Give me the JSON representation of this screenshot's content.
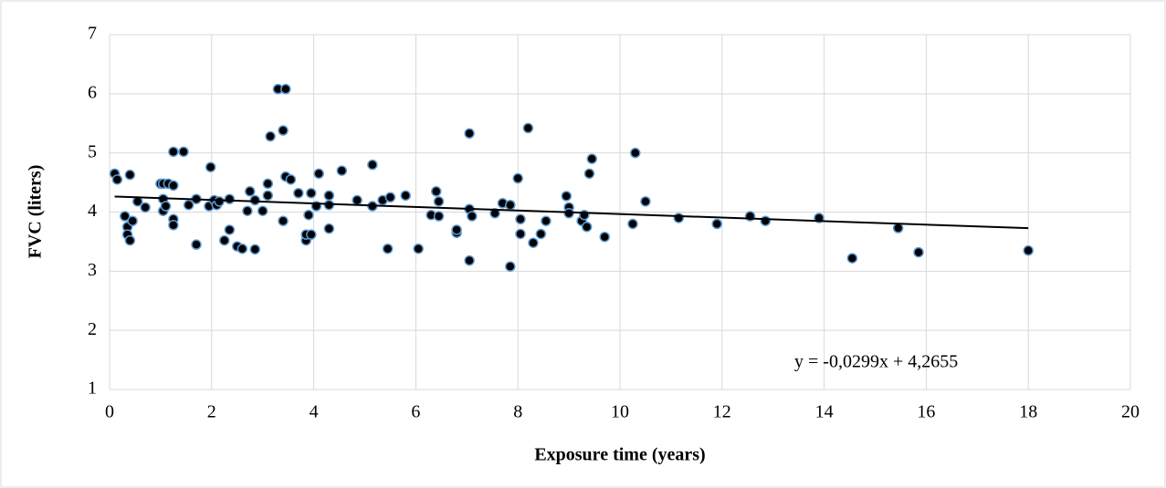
{
  "chart_data": {
    "type": "scatter",
    "x_label": "Exposure time (years)",
    "y_label": "FVC (liters)",
    "xlim": [
      0,
      20
    ],
    "xticks": [
      0,
      2,
      4,
      6,
      8,
      10,
      12,
      14,
      16,
      18,
      20
    ],
    "ylim": [
      1,
      7
    ],
    "yticks": [
      1,
      2,
      3,
      4,
      5,
      6,
      7
    ],
    "grid": true,
    "series": [
      {
        "color": "#000000",
        "x": [
          0.1,
          0.15,
          0.3,
          0.35,
          0.35,
          0.4,
          0.4,
          0.45,
          0.55,
          0.7,
          1.0,
          1.05,
          1.05,
          1.05,
          1.1,
          1.15,
          1.25,
          1.25,
          1.25,
          1.25,
          1.45,
          1.55,
          1.7,
          1.7,
          1.95,
          1.98,
          2.05,
          2.1,
          2.15,
          2.25,
          2.35,
          2.35,
          2.5,
          2.6,
          2.7,
          2.75,
          2.85,
          2.85,
          3.0,
          3.1,
          3.1,
          3.15,
          3.3,
          3.45,
          3.4,
          3.4,
          3.45,
          3.55,
          3.7,
          3.85,
          3.85,
          3.9,
          3.95,
          3.95,
          4.05,
          4.1,
          4.3,
          4.3,
          4.3,
          4.55,
          4.85,
          5.15,
          5.15,
          5.35,
          5.45,
          5.5,
          5.8,
          6.05,
          6.3,
          6.4,
          6.45,
          6.45,
          6.8,
          6.8,
          7.05,
          7.05,
          7.05,
          7.1,
          7.55,
          7.7,
          7.85,
          7.85,
          8.2,
          8.0,
          8.05,
          8.05,
          8.3,
          8.45,
          8.55,
          8.95,
          9.0,
          9.0,
          9.25,
          9.3,
          9.35,
          9.4,
          9.45,
          9.7,
          10.25,
          10.3,
          10.5,
          11.15,
          11.9,
          12.55,
          12.85,
          13.9,
          14.55,
          15.45,
          15.85,
          18.0
        ],
        "values": [
          4.65,
          4.55,
          3.93,
          3.75,
          3.62,
          3.52,
          4.63,
          3.85,
          4.18,
          4.08,
          4.48,
          4.48,
          4.22,
          4.02,
          4.1,
          4.48,
          4.45,
          5.02,
          3.88,
          3.78,
          5.02,
          4.12,
          3.45,
          4.22,
          4.1,
          4.76,
          4.2,
          4.12,
          4.18,
          3.52,
          3.7,
          4.22,
          3.42,
          3.38,
          4.02,
          4.35,
          3.37,
          4.2,
          4.02,
          4.28,
          4.48,
          5.28,
          6.08,
          6.08,
          5.38,
          3.85,
          4.6,
          4.55,
          4.32,
          3.52,
          3.62,
          3.95,
          4.32,
          3.62,
          4.1,
          4.65,
          4.28,
          4.12,
          3.72,
          4.7,
          4.2,
          4.8,
          4.1,
          4.2,
          3.38,
          4.25,
          4.28,
          3.38,
          3.95,
          4.35,
          4.18,
          3.93,
          3.65,
          3.7,
          5.33,
          4.05,
          3.18,
          3.93,
          3.98,
          4.15,
          4.12,
          3.08,
          5.42,
          4.57,
          3.88,
          3.63,
          3.48,
          3.63,
          3.85,
          4.27,
          4.08,
          3.98,
          3.85,
          3.95,
          3.75,
          4.65,
          4.9,
          3.58,
          3.8,
          5.0,
          4.18,
          3.9,
          3.8,
          3.93,
          3.85,
          3.9,
          3.22,
          3.73,
          3.32,
          3.35
        ],
        "marker_edge_color": "#5b9bd5"
      }
    ],
    "trendline": {
      "label": "y = -0,0299x + 4,2655",
      "slope": -0.0299,
      "intercept": 4.2655,
      "color": "#000000"
    }
  }
}
